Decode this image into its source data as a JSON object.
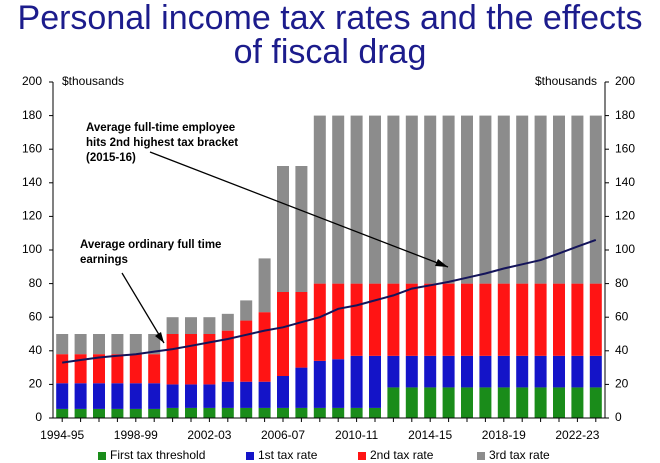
{
  "chart_data": {
    "type": "bar",
    "stacked": true,
    "title": [
      "Personal income tax rates and the effects",
      "of fiscal drag"
    ],
    "ylabel": "$thousands",
    "y2label": "$thousands",
    "categories": [
      "1994-95",
      null,
      null,
      null,
      "1998-99",
      null,
      null,
      null,
      "2002-03",
      null,
      null,
      null,
      "2006-07",
      null,
      null,
      null,
      "2010-11",
      null,
      null,
      null,
      "2014-15",
      null,
      null,
      null,
      "2018-19",
      null,
      null,
      null,
      "2022-23",
      null
    ],
    "series": [
      {
        "name": "First tax threshold",
        "color": "#1a8c1a",
        "values": [
          5.4,
          5.4,
          5.4,
          5.4,
          5.4,
          5.4,
          6,
          6,
          6,
          6,
          6,
          6,
          6,
          6,
          6,
          6,
          6,
          6,
          18.2,
          18.2,
          18.2,
          18.2,
          18.2,
          18.2,
          18.2,
          18.2,
          18.2,
          18.2,
          18.2,
          18.2
        ]
      },
      {
        "name": "1st tax rate",
        "color": "#1414c8",
        "values": [
          15.3,
          15.3,
          15.3,
          15.3,
          15.3,
          15.3,
          14,
          14,
          14,
          15.6,
          15.6,
          15.6,
          19,
          24,
          28,
          29,
          31,
          31,
          18.8,
          18.8,
          18.8,
          18.8,
          18.8,
          18.8,
          18.8,
          18.8,
          18.8,
          18.8,
          18.8,
          18.8
        ]
      },
      {
        "name": "2nd tax rate",
        "color": "#ff1414",
        "values": [
          17.3,
          17.3,
          17.3,
          17.3,
          17.3,
          17.3,
          30,
          30,
          30,
          30.4,
          36.4,
          41.4,
          50,
          45,
          46,
          45,
          43,
          43,
          43,
          43,
          43,
          43,
          43,
          43,
          43,
          43,
          43,
          43,
          43,
          43
        ]
      },
      {
        "name": "3rd tax rate",
        "color": "#8c8c8c",
        "values": [
          12,
          12,
          12,
          12,
          12,
          12,
          10,
          10,
          10,
          10,
          12,
          32,
          75,
          75,
          100,
          100,
          100,
          100,
          100,
          100,
          100,
          100,
          100,
          100,
          100,
          100,
          100,
          100,
          100,
          100
        ]
      }
    ],
    "line": {
      "color": "#14145a",
      "values": [
        33,
        34.5,
        36,
        37,
        38,
        39.5,
        41,
        43,
        45,
        47,
        49.5,
        52,
        54,
        57,
        60,
        65,
        67,
        70,
        73,
        77,
        79,
        81,
        83.5,
        86,
        89,
        91.5,
        94,
        98,
        102,
        106
      ]
    },
    "annotations": [
      [
        "Average full-time employee",
        "hits 2nd highest tax bracket",
        "(2015-16)"
      ],
      [
        "Average ordinary full time",
        "earnings"
      ]
    ],
    "ylim": [
      0,
      200
    ],
    "yticks": [
      0,
      20,
      40,
      60,
      80,
      100,
      120,
      140,
      160,
      180,
      200
    ],
    "y2lim": [
      0,
      200
    ],
    "y2ticks": [
      0,
      20,
      40,
      60,
      80,
      100,
      120,
      140,
      160,
      180,
      200
    ],
    "legend": "bottom"
  }
}
